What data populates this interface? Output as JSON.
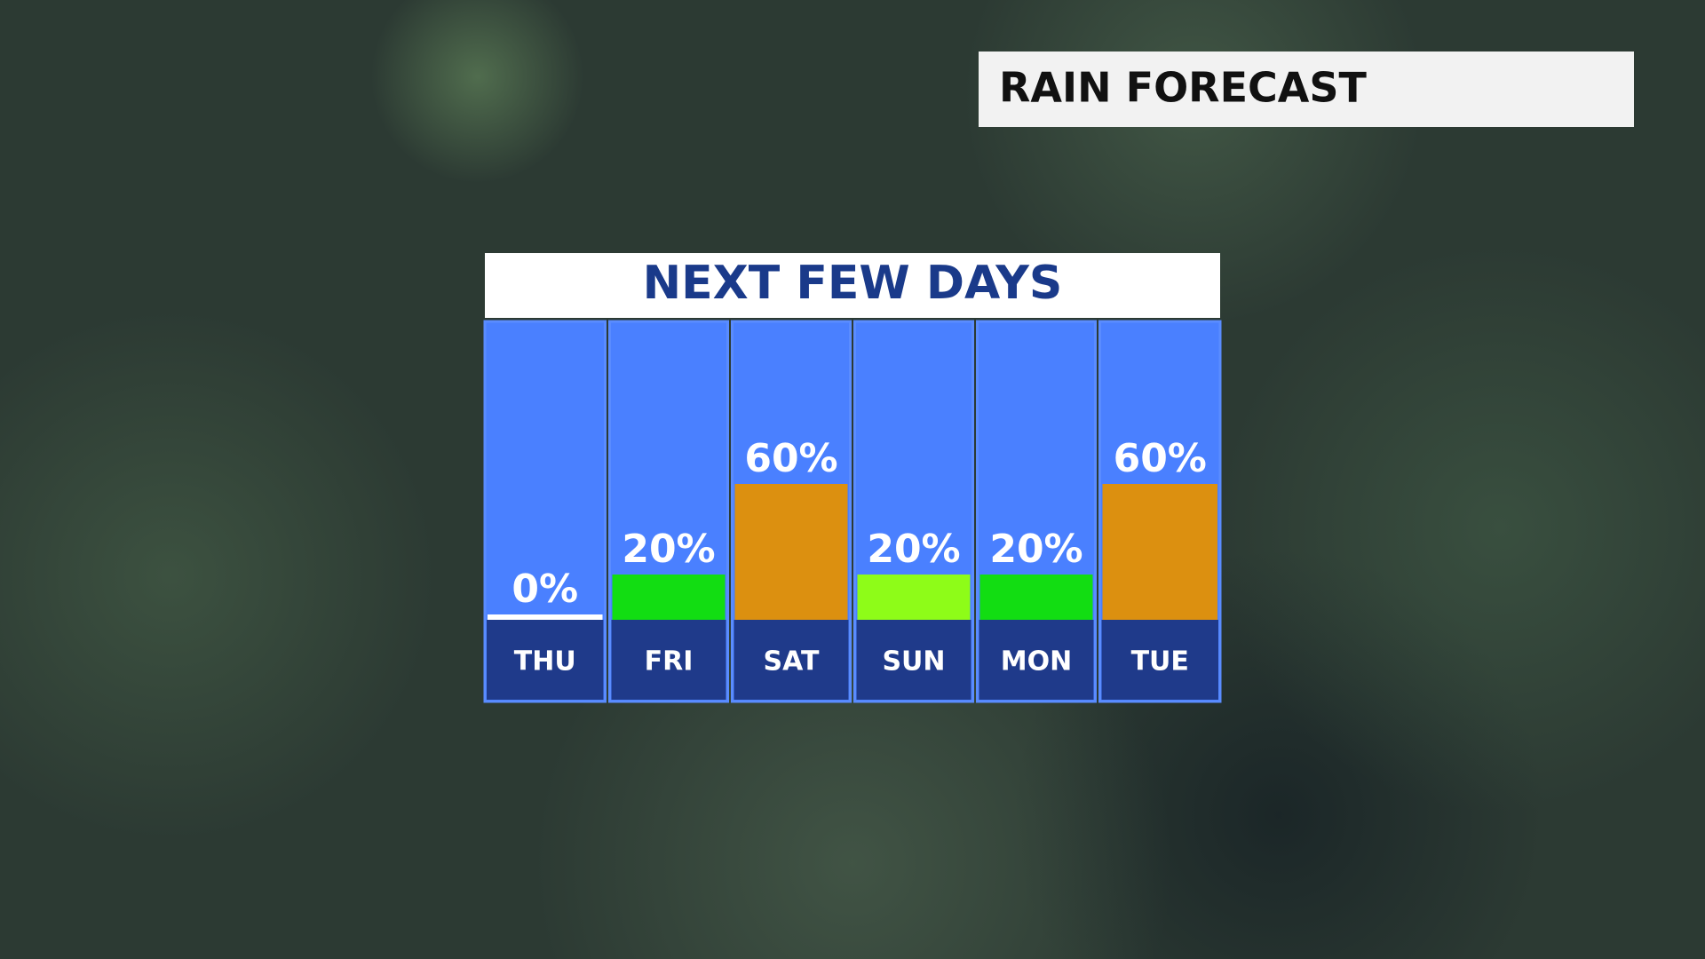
{
  "header": {
    "title": "RAIN FORECAST"
  },
  "chart_data": {
    "type": "bar",
    "title": "NEXT FEW DAYS",
    "categories": [
      "THU",
      "FRI",
      "SAT",
      "SUN",
      "MON",
      "TUE"
    ],
    "values": [
      0,
      20,
      60,
      20,
      20,
      60
    ],
    "value_labels": [
      "0%",
      "20%",
      "60%",
      "20%",
      "20%",
      "60%"
    ],
    "colors": [
      "#ffffff",
      "#12dd12",
      "#dc9010",
      "#8efc18",
      "#12dd12",
      "#dc9010"
    ]
  }
}
